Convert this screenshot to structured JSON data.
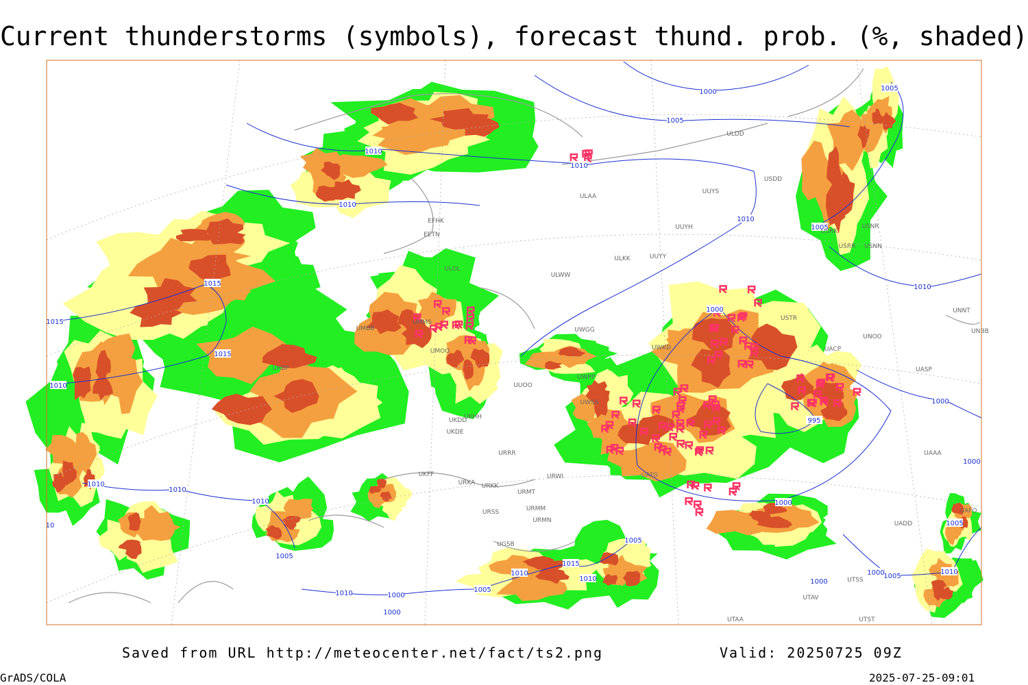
{
  "header": {
    "title": "Current thunderstorms (symbols), forecast thund. prob. (%, shaded)"
  },
  "map": {
    "isobar_labels": [
      "1000",
      "1005",
      "1010",
      "1010",
      "1010",
      "1010",
      "1005",
      "1005",
      "1010",
      "1000",
      "1015",
      "1015",
      "1015",
      "1010",
      "995",
      "1000",
      "1000",
      "1010",
      "1010",
      "1010",
      "1000",
      "1005",
      "1005",
      "1005",
      "1015",
      "1010",
      "1010",
      "1005",
      "1010",
      "1000",
      "1000",
      "1000",
      "1005",
      "1010",
      "1000",
      "10"
    ],
    "stations": [
      "ULDD",
      "UUYS",
      "USDD",
      "ULAA",
      "EFHK",
      "EETN",
      "ULOL",
      "UUYH",
      "ULKK",
      "UUYY",
      "ULWW",
      "USRR",
      "USNN",
      "USRK",
      "USNR",
      "UNNT",
      "UNBB",
      "USTR",
      "UNOO",
      "UACP",
      "UASP",
      "UWGG",
      "UWKD",
      "UWPP",
      "UWSS",
      "UUOO",
      "UKHH",
      "UKDD",
      "UKDE",
      "URRR",
      "URWI",
      "UATG",
      "UKFF",
      "URKA",
      "URKK",
      "URMT",
      "URMM",
      "URSS",
      "URMN",
      "UGSB",
      "UAAA",
      "UAFO",
      "UADD",
      "UTAA",
      "UTSS",
      "UTAV",
      "UTST",
      "UMMS",
      "UMBB",
      "UMOO",
      "LHBP"
    ]
  },
  "footer": {
    "source": "Saved from URL http://meteocenter.net/fact/ts2.png",
    "valid": "Valid: 20250725 09Z",
    "credit": "GrADS/COLA",
    "timestamp": "2025-07-25-09:01"
  }
}
